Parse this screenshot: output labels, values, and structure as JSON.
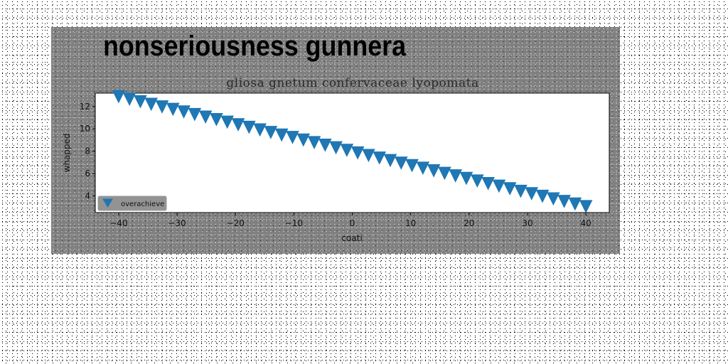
{
  "chart_data": {
    "type": "scatter",
    "suptitle": "nonseriousness gunnera",
    "title": "gliosa gnetum confervaceae lyopomata",
    "xlabel": "coati",
    "ylabel": "whapped",
    "xlim": [
      -44,
      44
    ],
    "ylim": [
      2.5,
      13.2
    ],
    "xticks": [
      -40,
      -30,
      -20,
      -10,
      0,
      10,
      20,
      30,
      40
    ],
    "yticks": [
      4,
      6,
      8,
      10,
      12
    ],
    "grid": false,
    "legend_position": "lower-left",
    "marker": "triangle-down",
    "colors": {
      "series": "#1f77b4",
      "figure_bg": "#808080",
      "axes_bg": "#ffffff"
    },
    "series": [
      {
        "name": "overachieve",
        "x": [
          -40,
          -38.14,
          -36.28,
          -34.42,
          -32.56,
          -30.7,
          -28.84,
          -26.98,
          -25.12,
          -23.26,
          -21.4,
          -19.53,
          -17.67,
          -15.81,
          -13.95,
          -12.09,
          -10.23,
          -8.37,
          -6.51,
          -4.65,
          -2.79,
          -0.93,
          0.93,
          2.79,
          4.65,
          6.51,
          8.37,
          10.23,
          12.09,
          13.95,
          15.81,
          17.67,
          19.53,
          21.4,
          23.26,
          25.12,
          26.98,
          28.84,
          30.7,
          32.56,
          34.42,
          36.28,
          38.14,
          40
        ],
        "y": [
          12.9,
          12.67,
          12.44,
          12.21,
          11.98,
          11.76,
          11.53,
          11.3,
          11.07,
          10.84,
          10.61,
          10.38,
          10.15,
          9.92,
          9.69,
          9.46,
          9.24,
          9.01,
          8.78,
          8.55,
          8.32,
          8.09,
          7.86,
          7.63,
          7.4,
          7.17,
          6.94,
          6.72,
          6.49,
          6.26,
          6.03,
          5.8,
          5.57,
          5.34,
          5.11,
          4.88,
          4.65,
          4.42,
          4.2,
          3.97,
          3.74,
          3.51,
          3.28,
          3.05
        ]
      }
    ]
  }
}
